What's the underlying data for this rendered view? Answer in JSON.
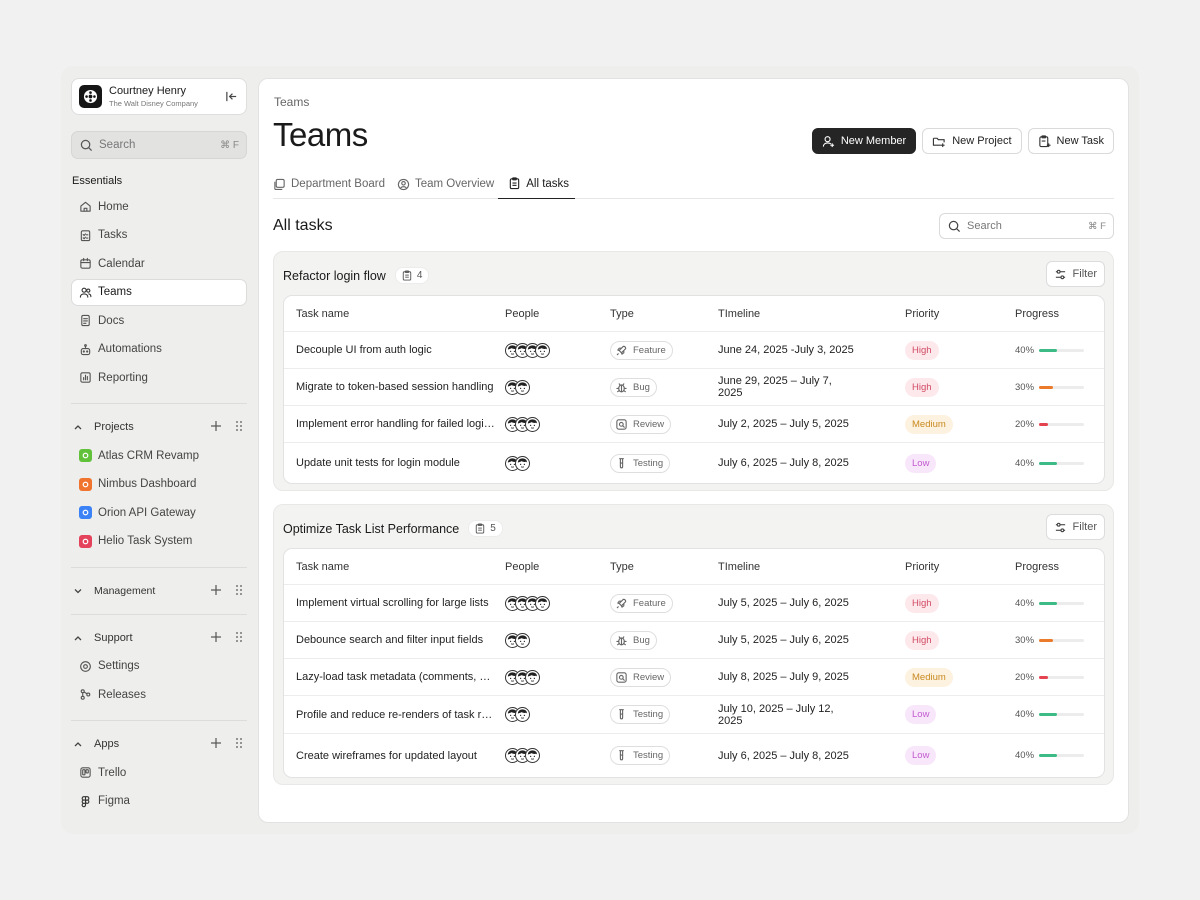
{
  "colors": {
    "high_bg": "#fde8ec",
    "high_fg": "#d14b63",
    "medium_bg": "#fdf1df",
    "medium_fg": "#c98a21",
    "low_bg": "#f8e6fa",
    "low_fg": "#c35bd1",
    "bar_green": "#3dbb86",
    "bar_orange": "#ec7a2b",
    "bar_red": "#e5424f"
  },
  "account": {
    "name": "Courtney Henry",
    "org": "The Walt Disney Company"
  },
  "sidebar": {
    "search_placeholder": "Search",
    "search_kbd": "⌘ F",
    "essentials_title": "Essentials",
    "nav": [
      {
        "label": "Home",
        "icon": "home-icon"
      },
      {
        "label": "Tasks",
        "icon": "tasks-icon"
      },
      {
        "label": "Calendar",
        "icon": "calendar-icon"
      },
      {
        "label": "Teams",
        "icon": "teams-icon",
        "active": true
      },
      {
        "label": "Docs",
        "icon": "docs-icon"
      },
      {
        "label": "Automations",
        "icon": "automations-icon"
      },
      {
        "label": "Reporting",
        "icon": "reporting-icon"
      }
    ],
    "projects_title": "Projects",
    "projects": [
      {
        "label": "Atlas CRM Revamp",
        "color": "#62c13b"
      },
      {
        "label": "Nimbus Dashboard",
        "color": "#f0742d"
      },
      {
        "label": "Orion API Gateway",
        "color": "#3b82f6"
      },
      {
        "label": "Helio Task System",
        "color": "#e5425c"
      }
    ],
    "management_title": "Management",
    "support_title": "Support",
    "support": [
      {
        "label": "Settings",
        "icon": "settings-icon"
      },
      {
        "label": "Releases",
        "icon": "releases-icon"
      }
    ],
    "apps_title": "Apps",
    "apps": [
      {
        "label": "Trello",
        "icon": "trello-icon"
      },
      {
        "label": "Figma",
        "icon": "figma-icon"
      }
    ]
  },
  "header": {
    "breadcrumb": "Teams",
    "title": "Teams",
    "new_member": "New Member",
    "new_project": "New Project",
    "new_task": "New Task"
  },
  "tabs": [
    {
      "label": "Department Board"
    },
    {
      "label": "Team Overview"
    },
    {
      "label": "All tasks",
      "active": true
    }
  ],
  "content": {
    "section_title": "All tasks",
    "search_placeholder": "Search",
    "search_kbd": "⌘ F",
    "filter_label": "Filter",
    "columns": [
      "Task name",
      "People",
      "Type",
      "TImeline",
      "Priority",
      "Progress"
    ]
  },
  "groups": [
    {
      "title": "Refactor login flow",
      "count": "4",
      "tasks": [
        {
          "name": "Decouple UI from auth logic",
          "people": 4,
          "type": "Feature",
          "timeline": "June 24, 2025 -July 3, 2025",
          "priority": "High",
          "progress": "40%",
          "progress_value": 40
        },
        {
          "name": "Migrate to token-based session handling",
          "people": 2,
          "type": "Bug",
          "timeline": "June 29, 2025 – July 7, 2025",
          "priority": "High",
          "progress": "30%",
          "progress_value": 30
        },
        {
          "name": "Implement error handling for failed logins",
          "people": 3,
          "type": "Review",
          "timeline": "July 2, 2025 – July 5, 2025",
          "priority": "Medium",
          "progress": "20%",
          "progress_value": 20
        },
        {
          "name": "Update unit tests for login module",
          "people": 2,
          "type": "Testing",
          "timeline": "July 6, 2025 – July 8, 2025",
          "priority": "Low",
          "progress": "40%",
          "progress_value": 40
        }
      ]
    },
    {
      "title": "Optimize Task List Performance",
      "count": "5",
      "tasks": [
        {
          "name": "Implement virtual scrolling for large lists",
          "people": 4,
          "type": "Feature",
          "timeline": "July 5, 2025 – July 6, 2025",
          "priority": "High",
          "progress": "40%",
          "progress_value": 40
        },
        {
          "name": "Debounce search and filter input fields",
          "people": 2,
          "type": "Bug",
          "timeline": "July 5, 2025 – July 6, 2025",
          "priority": "High",
          "progress": "30%",
          "progress_value": 30
        },
        {
          "name": "Lazy-load task metadata (comments, act...",
          "people": 3,
          "type": "Review",
          "timeline": "July 8, 2025 – July 9, 2025",
          "priority": "Medium",
          "progress": "20%",
          "progress_value": 20
        },
        {
          "name": "Profile and reduce re-renders of task rows",
          "people": 2,
          "type": "Testing",
          "timeline": "July 10, 2025 – July 12, 2025",
          "priority": "Low",
          "progress": "40%",
          "progress_value": 40
        },
        {
          "name": "Create wireframes for updated layout",
          "people": 3,
          "type": "Testing",
          "timeline": "July 6, 2025 – July 8, 2025",
          "priority": "Low",
          "progress": "40%",
          "progress_value": 40
        }
      ]
    }
  ]
}
